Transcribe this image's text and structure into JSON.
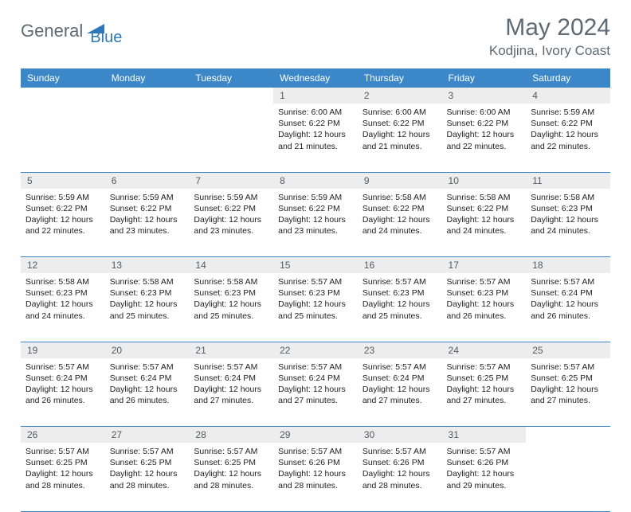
{
  "brand": {
    "part1": "General",
    "part2": "Blue"
  },
  "title": "May 2024",
  "location": "Kodjina, Ivory Coast",
  "colors": {
    "header_bg": "#3b87c8",
    "header_text": "#ffffff",
    "daynum_bg": "#ededed",
    "border": "#3b87c8",
    "title_color": "#5e6a74",
    "brand_blue": "#2e78ba"
  },
  "weekdays": [
    "Sunday",
    "Monday",
    "Tuesday",
    "Wednesday",
    "Thursday",
    "Friday",
    "Saturday"
  ],
  "weeks": [
    [
      null,
      null,
      null,
      {
        "d": "1",
        "sr": "6:00 AM",
        "ss": "6:22 PM",
        "dl": "12 hours and 21 minutes."
      },
      {
        "d": "2",
        "sr": "6:00 AM",
        "ss": "6:22 PM",
        "dl": "12 hours and 21 minutes."
      },
      {
        "d": "3",
        "sr": "6:00 AM",
        "ss": "6:22 PM",
        "dl": "12 hours and 22 minutes."
      },
      {
        "d": "4",
        "sr": "5:59 AM",
        "ss": "6:22 PM",
        "dl": "12 hours and 22 minutes."
      }
    ],
    [
      {
        "d": "5",
        "sr": "5:59 AM",
        "ss": "6:22 PM",
        "dl": "12 hours and 22 minutes."
      },
      {
        "d": "6",
        "sr": "5:59 AM",
        "ss": "6:22 PM",
        "dl": "12 hours and 23 minutes."
      },
      {
        "d": "7",
        "sr": "5:59 AM",
        "ss": "6:22 PM",
        "dl": "12 hours and 23 minutes."
      },
      {
        "d": "8",
        "sr": "5:59 AM",
        "ss": "6:22 PM",
        "dl": "12 hours and 23 minutes."
      },
      {
        "d": "9",
        "sr": "5:58 AM",
        "ss": "6:22 PM",
        "dl": "12 hours and 24 minutes."
      },
      {
        "d": "10",
        "sr": "5:58 AM",
        "ss": "6:22 PM",
        "dl": "12 hours and 24 minutes."
      },
      {
        "d": "11",
        "sr": "5:58 AM",
        "ss": "6:23 PM",
        "dl": "12 hours and 24 minutes."
      }
    ],
    [
      {
        "d": "12",
        "sr": "5:58 AM",
        "ss": "6:23 PM",
        "dl": "12 hours and 24 minutes."
      },
      {
        "d": "13",
        "sr": "5:58 AM",
        "ss": "6:23 PM",
        "dl": "12 hours and 25 minutes."
      },
      {
        "d": "14",
        "sr": "5:58 AM",
        "ss": "6:23 PM",
        "dl": "12 hours and 25 minutes."
      },
      {
        "d": "15",
        "sr": "5:57 AM",
        "ss": "6:23 PM",
        "dl": "12 hours and 25 minutes."
      },
      {
        "d": "16",
        "sr": "5:57 AM",
        "ss": "6:23 PM",
        "dl": "12 hours and 25 minutes."
      },
      {
        "d": "17",
        "sr": "5:57 AM",
        "ss": "6:23 PM",
        "dl": "12 hours and 26 minutes."
      },
      {
        "d": "18",
        "sr": "5:57 AM",
        "ss": "6:24 PM",
        "dl": "12 hours and 26 minutes."
      }
    ],
    [
      {
        "d": "19",
        "sr": "5:57 AM",
        "ss": "6:24 PM",
        "dl": "12 hours and 26 minutes."
      },
      {
        "d": "20",
        "sr": "5:57 AM",
        "ss": "6:24 PM",
        "dl": "12 hours and 26 minutes."
      },
      {
        "d": "21",
        "sr": "5:57 AM",
        "ss": "6:24 PM",
        "dl": "12 hours and 27 minutes."
      },
      {
        "d": "22",
        "sr": "5:57 AM",
        "ss": "6:24 PM",
        "dl": "12 hours and 27 minutes."
      },
      {
        "d": "23",
        "sr": "5:57 AM",
        "ss": "6:24 PM",
        "dl": "12 hours and 27 minutes."
      },
      {
        "d": "24",
        "sr": "5:57 AM",
        "ss": "6:25 PM",
        "dl": "12 hours and 27 minutes."
      },
      {
        "d": "25",
        "sr": "5:57 AM",
        "ss": "6:25 PM",
        "dl": "12 hours and 27 minutes."
      }
    ],
    [
      {
        "d": "26",
        "sr": "5:57 AM",
        "ss": "6:25 PM",
        "dl": "12 hours and 28 minutes."
      },
      {
        "d": "27",
        "sr": "5:57 AM",
        "ss": "6:25 PM",
        "dl": "12 hours and 28 minutes."
      },
      {
        "d": "28",
        "sr": "5:57 AM",
        "ss": "6:25 PM",
        "dl": "12 hours and 28 minutes."
      },
      {
        "d": "29",
        "sr": "5:57 AM",
        "ss": "6:26 PM",
        "dl": "12 hours and 28 minutes."
      },
      {
        "d": "30",
        "sr": "5:57 AM",
        "ss": "6:26 PM",
        "dl": "12 hours and 28 minutes."
      },
      {
        "d": "31",
        "sr": "5:57 AM",
        "ss": "6:26 PM",
        "dl": "12 hours and 29 minutes."
      },
      null
    ]
  ],
  "labels": {
    "sunrise": "Sunrise:",
    "sunset": "Sunset:",
    "daylight": "Daylight:"
  }
}
